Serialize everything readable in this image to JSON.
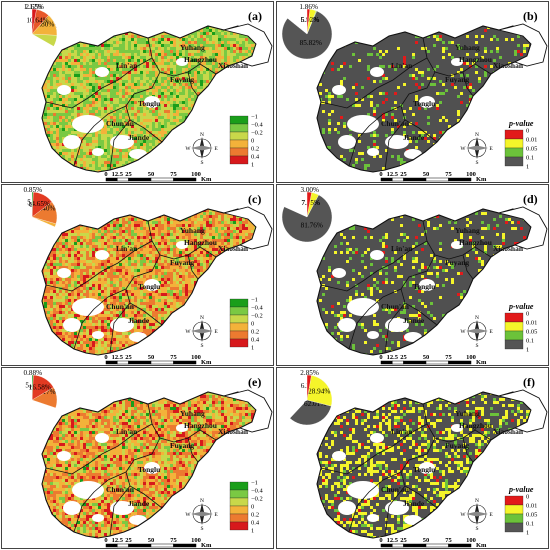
{
  "panels": [
    {
      "id": "a",
      "label": "(a)",
      "type": "trend",
      "pie": {
        "slices": [
          {
            "value": 1.12,
            "label": "1.12%",
            "color": "#1a9e1a"
          },
          {
            "value": 23.17,
            "label": "23.17%",
            "color": "#7ac943"
          },
          {
            "value": 30.62,
            "label": "30.62%",
            "color": "#c8d84a"
          },
          {
            "value": 23.8,
            "label": "23.80%",
            "color": "#f3b23a"
          },
          {
            "value": 10.64,
            "label": "10.64%",
            "color": "#e8582a"
          },
          {
            "value": 2.65,
            "label": "2.65%",
            "color": "#d7191c"
          }
        ]
      },
      "legend": {
        "title": "",
        "labels": [
          "−1",
          "−0.4",
          "−0.2",
          "0",
          "0.2",
          "0.4",
          "1"
        ]
      }
    },
    {
      "id": "b",
      "label": "(b)",
      "type": "pvalue",
      "pie": {
        "slices": [
          {
            "value": 85.82,
            "label": "85.82%",
            "color": "#555555"
          },
          {
            "value": 6.4,
            "label": "6.40%",
            "color": "#6cc23a"
          },
          {
            "value": 5.92,
            "label": "5.92%",
            "color": "#f5f52a"
          },
          {
            "value": 1.86,
            "label": "1.86%",
            "color": "#e21a1a"
          }
        ]
      },
      "legend": {
        "title": "p-value",
        "labels": [
          "0",
          "0.01",
          "0.05",
          "0.1",
          "1"
        ]
      }
    },
    {
      "id": "c",
      "label": "(c)",
      "type": "trend",
      "pie": {
        "slices": [
          {
            "value": 5.7,
            "label": "5.7%",
            "color": "#7ac943"
          },
          {
            "value": 17.89,
            "label": "17.89%",
            "color": "#c8d84a"
          },
          {
            "value": 31.51,
            "label": "31.51%",
            "color": "#f3b23a"
          },
          {
            "value": 29.4,
            "label": "29.40%",
            "color": "#ec7a30"
          },
          {
            "value": 14.65,
            "label": "14.65%",
            "color": "#e23a22"
          },
          {
            "value": 0.85,
            "label": "0.85%",
            "color": "#1a9e1a"
          }
        ]
      },
      "legend": {
        "title": "",
        "labels": [
          "−1",
          "−0.4",
          "−0.2",
          "0",
          "0.2",
          "0.4",
          "1"
        ]
      }
    },
    {
      "id": "d",
      "label": "(d)",
      "type": "pvalue",
      "pie": {
        "slices": [
          {
            "value": 81.76,
            "label": "81.76%",
            "color": "#555555"
          },
          {
            "value": 7.49,
            "label": "7.49%",
            "color": "#6cc23a"
          },
          {
            "value": 7.75,
            "label": "7.75%",
            "color": "#f5f52a"
          },
          {
            "value": 3.0,
            "label": "3.00%",
            "color": "#e21a1a"
          }
        ]
      },
      "legend": {
        "title": "p-value",
        "labels": [
          "0",
          "0.01",
          "0.05",
          "0.1",
          "1"
        ]
      }
    },
    {
      "id": "e",
      "label": "(e)",
      "type": "trend",
      "pie": {
        "slices": [
          {
            "value": 5.45,
            "label": "5.45%",
            "color": "#7ac943"
          },
          {
            "value": 16.86,
            "label": "16.86%",
            "color": "#c8d84a"
          },
          {
            "value": 30.06,
            "label": "30.06%",
            "color": "#f3b23a"
          },
          {
            "value": 30.17,
            "label": "30.17%",
            "color": "#ec7a30"
          },
          {
            "value": 16.58,
            "label": "16.58%",
            "color": "#e23a22"
          },
          {
            "value": 0.88,
            "label": "0.88%",
            "color": "#1a9e1a"
          }
        ]
      },
      "legend": {
        "title": "",
        "labels": [
          "−1",
          "−0.4",
          "−0.2",
          "0",
          "0.2",
          "0.4",
          "1"
        ]
      }
    },
    {
      "id": "f",
      "label": "(f)",
      "type": "pvalue",
      "pie": {
        "slices": [
          {
            "value": 62.01,
            "label": "62.01%",
            "color": "#555555"
          },
          {
            "value": 6.2,
            "label": "6.20%",
            "color": "#6cc23a"
          },
          {
            "value": 28.94,
            "label": "28.94%",
            "color": "#f5f52a"
          },
          {
            "value": 2.85,
            "label": "2.85%",
            "color": "#e21a1a"
          }
        ]
      },
      "legend": {
        "title": "p-value",
        "labels": [
          "0",
          "0.01",
          "0.05",
          "0.1",
          "1"
        ]
      }
    }
  ],
  "places": [
    "Lin'an",
    "Yuhang",
    "Hangzhou",
    "Xiaoshan",
    "Fuyang",
    "Tonglu",
    "Chun'an",
    "Jiande"
  ],
  "scalebar": {
    "ticks": [
      "0",
      "12.5",
      "25",
      "50",
      "75",
      "100"
    ],
    "unit": "Km"
  },
  "compass": {
    "n": "N",
    "s": "S",
    "e": "E",
    "w": "W"
  },
  "colors": {
    "trend_ramp": [
      "#1a9e1a",
      "#7ac943",
      "#c8d84a",
      "#f3b23a",
      "#ec7a30",
      "#d7191c"
    ],
    "pvalue_ramp": [
      "#e21a1a",
      "#f5f52a",
      "#6cc23a",
      "#555555"
    ],
    "outline": "#111111",
    "background": "#ffffff"
  }
}
